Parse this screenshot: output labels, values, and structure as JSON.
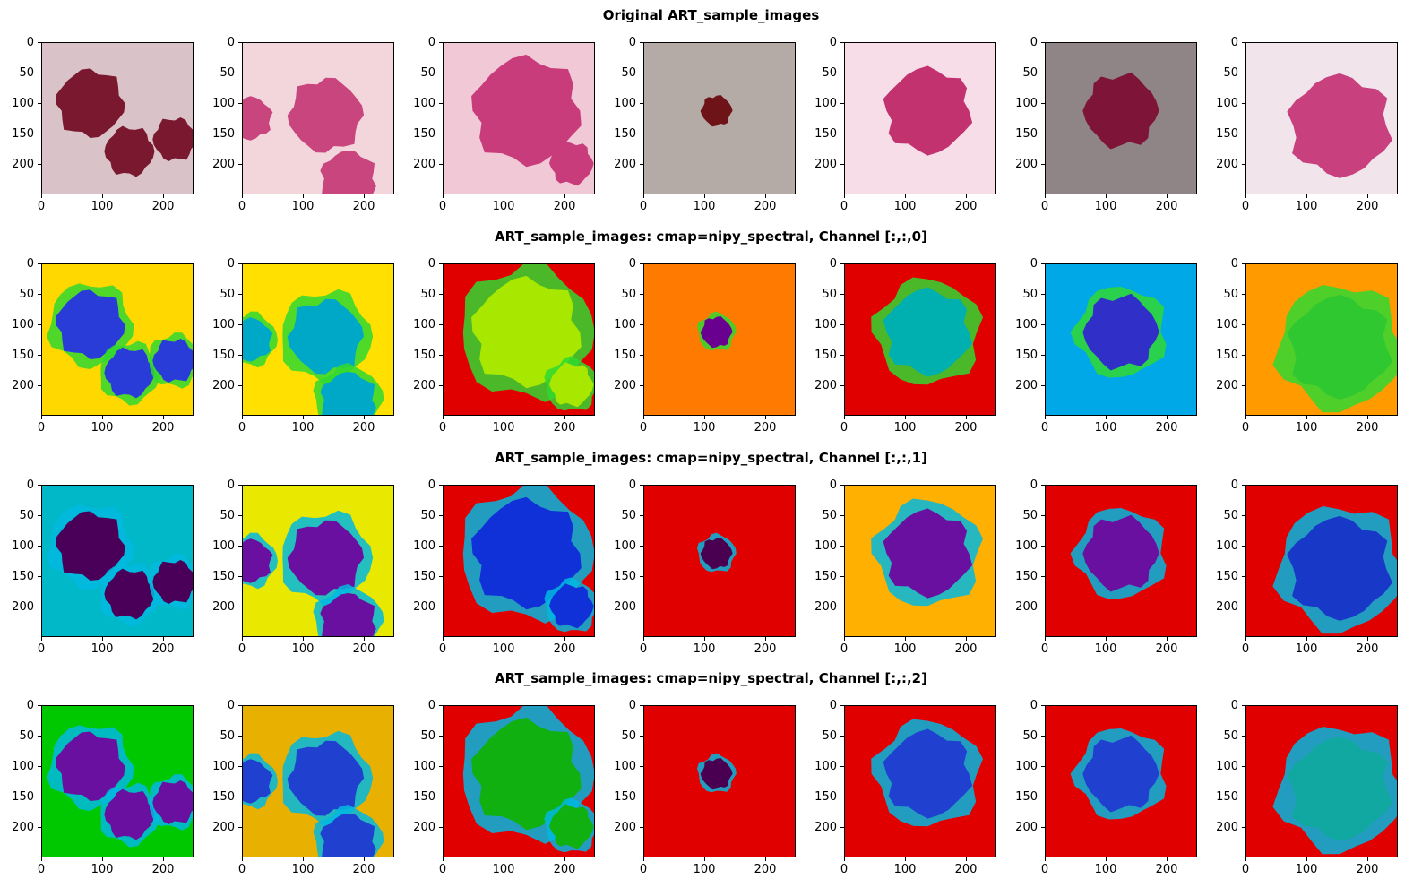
{
  "row_titles": [
    "Original ART_sample_images",
    "ART_sample_images: cmap=nipy_spectral, Channel [:,:,0]",
    "ART_sample_images: cmap=nipy_spectral, Channel [:,:,1]",
    "ART_sample_images: cmap=nipy_spectral, Channel [:,:,2]"
  ],
  "axis": {
    "yticks": [
      "0",
      "50",
      "100",
      "150",
      "200"
    ],
    "xticks": [
      "0",
      "100",
      "200"
    ]
  },
  "grid": {
    "rows": 4,
    "cols": 7
  },
  "colors": {
    "original_backgrounds": [
      "#d9c3c8",
      "#f2d6dc",
      "#f0c8d6",
      "#b4aaa6",
      "#f6dde8",
      "#8f8587",
      "#f1e4ea"
    ],
    "original_cells": [
      "#7a1830",
      "#c8457e",
      "#c93c7c",
      "#6e1418",
      "#c2326f",
      "#7e1438",
      "#c8407e"
    ],
    "spectral_backgrounds": [
      [
        "#ffd800",
        "#ffe000",
        "#e00000",
        "#ff7a00",
        "#e00000",
        "#00a8e8",
        "#ff9a00"
      ],
      [
        "#00b8c8",
        "#e8e800",
        "#e00000",
        "#e00000",
        "#ffb000",
        "#e00000",
        "#e00000"
      ],
      [
        "#00c800",
        "#e8b000",
        "#e00000",
        "#e00000",
        "#e00000",
        "#e00000",
        "#e00000"
      ]
    ],
    "spectral_cells": [
      [
        "#2a3cd8",
        "#00a8c8",
        "#a8e800",
        "#6a0090",
        "#00b0b0",
        "#3030c8",
        "#30c830"
      ],
      [
        "#4a0058",
        "#6a10a0",
        "#1030d8",
        "#4a0050",
        "#6a10a0",
        "#6a10a0",
        "#1838c8"
      ],
      [
        "#6a10a0",
        "#2040d0",
        "#10b010",
        "#4a0050",
        "#2040d0",
        "#2040d0",
        "#10a8a0"
      ]
    ]
  }
}
